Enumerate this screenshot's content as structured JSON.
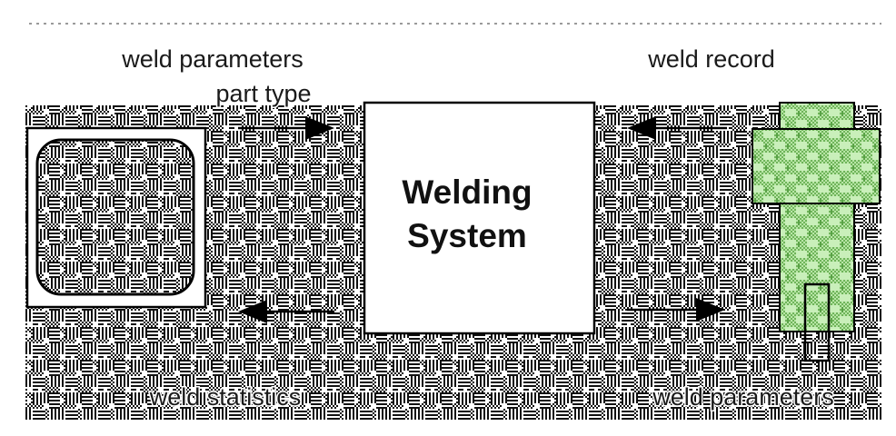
{
  "labels": {
    "top_left_1": "weld parameters",
    "top_left_2": "part type",
    "top_right": "weld record",
    "bottom_left": "weld statistics",
    "bottom_right": "weld parameters"
  },
  "system": {
    "line1": "Welding",
    "line2": "System"
  },
  "colors": {
    "background_pattern_dark": "#111111",
    "background_pattern_light": "#ffffff",
    "device_green": "#9dd889",
    "box_fill": "#ffffff",
    "stroke": "#000000"
  },
  "icons": {
    "left_device": "rounded-square-panel-icon",
    "right_device": "welding-gun-icon"
  }
}
